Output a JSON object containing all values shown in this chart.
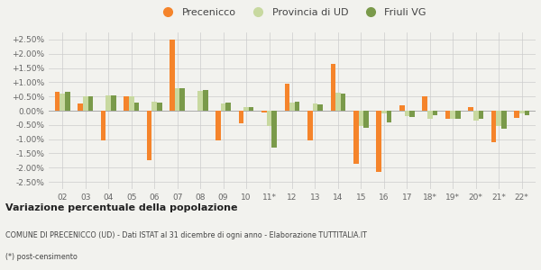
{
  "categories": [
    "02",
    "03",
    "04",
    "05",
    "06",
    "07",
    "08",
    "09",
    "10",
    "11*",
    "12",
    "13",
    "14",
    "15",
    "16",
    "17",
    "18*",
    "19*",
    "20*",
    "21*",
    "22*"
  ],
  "precenicco": [
    0.65,
    0.25,
    -1.05,
    0.5,
    -1.75,
    2.5,
    0.0,
    -1.05,
    -0.45,
    -0.05,
    0.95,
    -1.05,
    1.65,
    -1.85,
    -2.15,
    0.2,
    0.5,
    -0.3,
    0.12,
    -1.1,
    -0.25
  ],
  "provincia_ud": [
    0.6,
    0.5,
    0.55,
    0.5,
    0.32,
    0.8,
    0.7,
    0.25,
    0.12,
    -0.55,
    0.3,
    0.25,
    0.62,
    -0.55,
    -0.08,
    -0.18,
    -0.3,
    -0.3,
    -0.35,
    -0.55,
    -0.1
  ],
  "friuli_vg": [
    0.65,
    0.52,
    0.55,
    0.3,
    0.3,
    0.8,
    0.72,
    0.28,
    0.12,
    -1.3,
    0.32,
    0.22,
    0.6,
    -0.6,
    -0.4,
    -0.22,
    -0.15,
    -0.3,
    -0.3,
    -0.62,
    -0.15
  ],
  "color_precenicco": "#F5842B",
  "color_provincia": "#C8D9A0",
  "color_friuli": "#7A9A4A",
  "bg_color": "#F2F2EE",
  "title1": "Variazione percentuale della popolazione",
  "title2": "COMUNE DI PRECENICCO (UD) - Dati ISTAT al 31 dicembre di ogni anno - Elaborazione TUTTITALIA.IT",
  "title3": "(*) post-censimento",
  "ylim": [
    -2.75,
    2.75
  ],
  "yticks": [
    -2.5,
    -2.0,
    -1.5,
    -1.0,
    -0.5,
    0.0,
    0.5,
    1.0,
    1.5,
    2.0,
    2.5
  ],
  "ytick_labels": [
    "-2.50%",
    "-2.00%",
    "-1.50%",
    "-1.00%",
    "-0.50%",
    "0.00%",
    "+0.50%",
    "+1.00%",
    "+1.50%",
    "+2.00%",
    "+2.50%"
  ]
}
